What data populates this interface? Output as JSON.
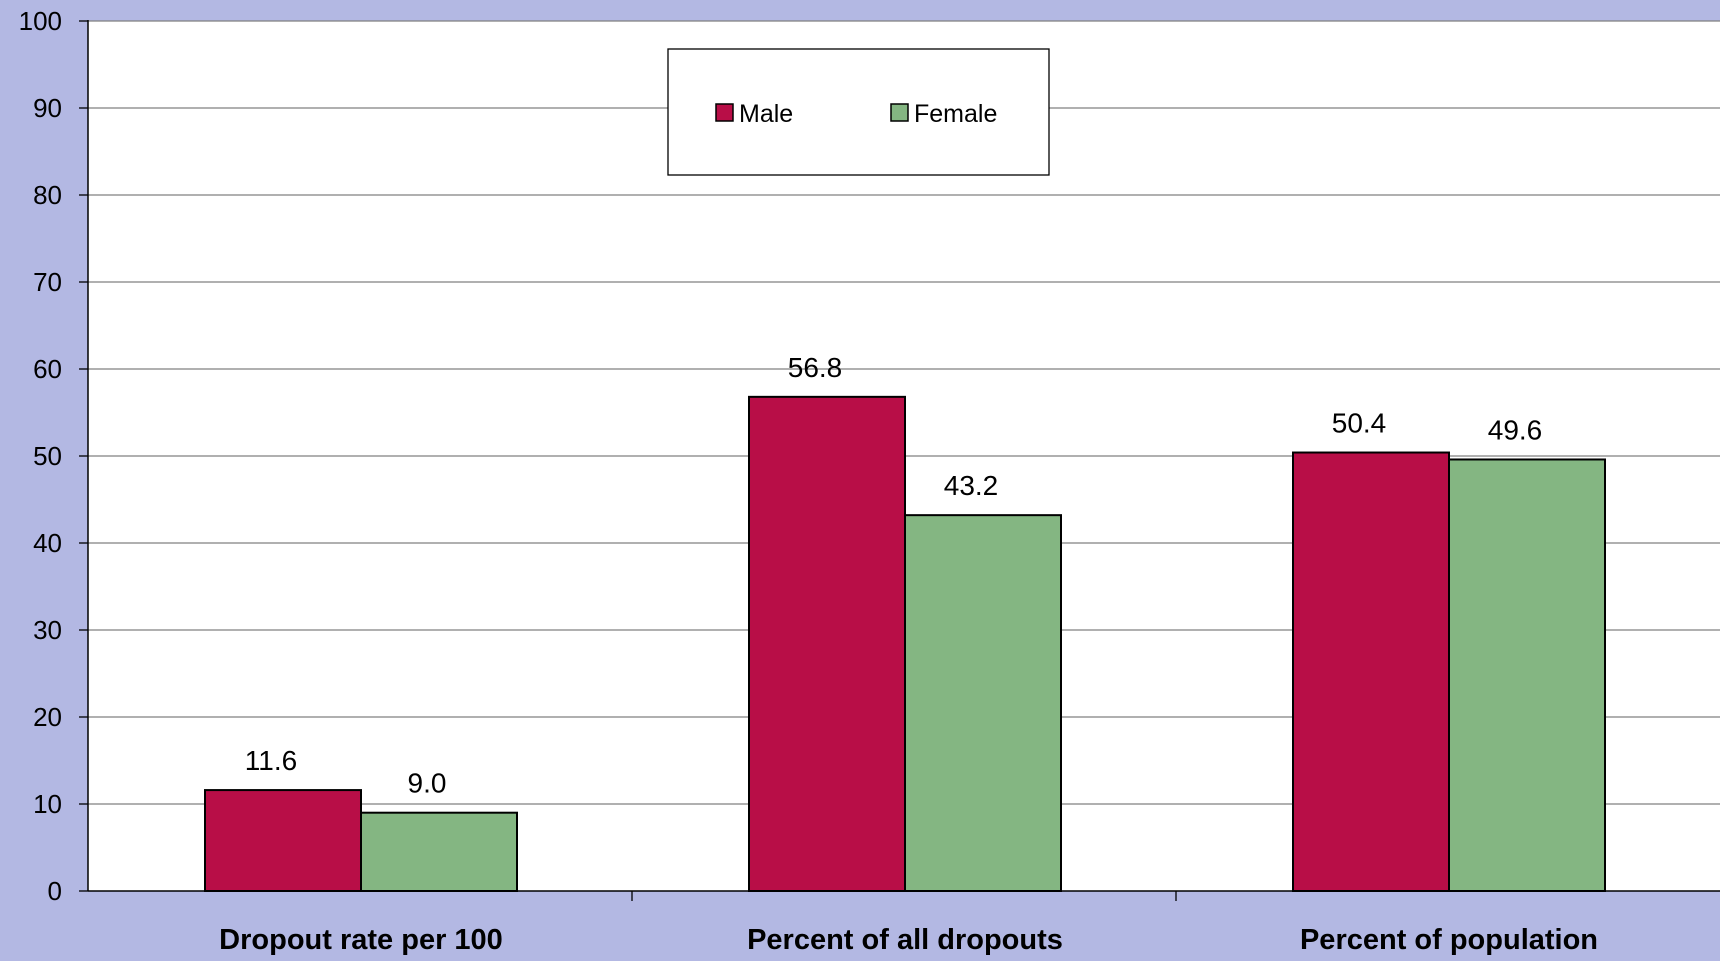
{
  "chart_data": {
    "type": "bar",
    "categories": [
      "Dropout rate per 100",
      "Percent of all dropouts",
      "Percent of population"
    ],
    "series": [
      {
        "name": "Male",
        "values": [
          11.6,
          56.8,
          50.4
        ],
        "color": "#b80e47",
        "value_labels": [
          "11.6",
          "56.8",
          "50.4"
        ]
      },
      {
        "name": "Female",
        "values": [
          9.0,
          43.2,
          49.6
        ],
        "color": "#84b682",
        "value_labels": [
          "9.0",
          "43.2",
          "49.6"
        ]
      }
    ],
    "y_ticks": [
      "0",
      "10",
      "20",
      "30",
      "40",
      "50",
      "60",
      "70",
      "80",
      "90",
      "100"
    ],
    "ylim": [
      0,
      100
    ],
    "title": "",
    "xlabel": "",
    "ylabel": "",
    "grid": true,
    "legend_position": "top-center",
    "colors": {
      "background": "#b3b8e3",
      "plot_area": "#ffffff",
      "gridline": "#808080",
      "bar_stroke": "#000000"
    }
  }
}
